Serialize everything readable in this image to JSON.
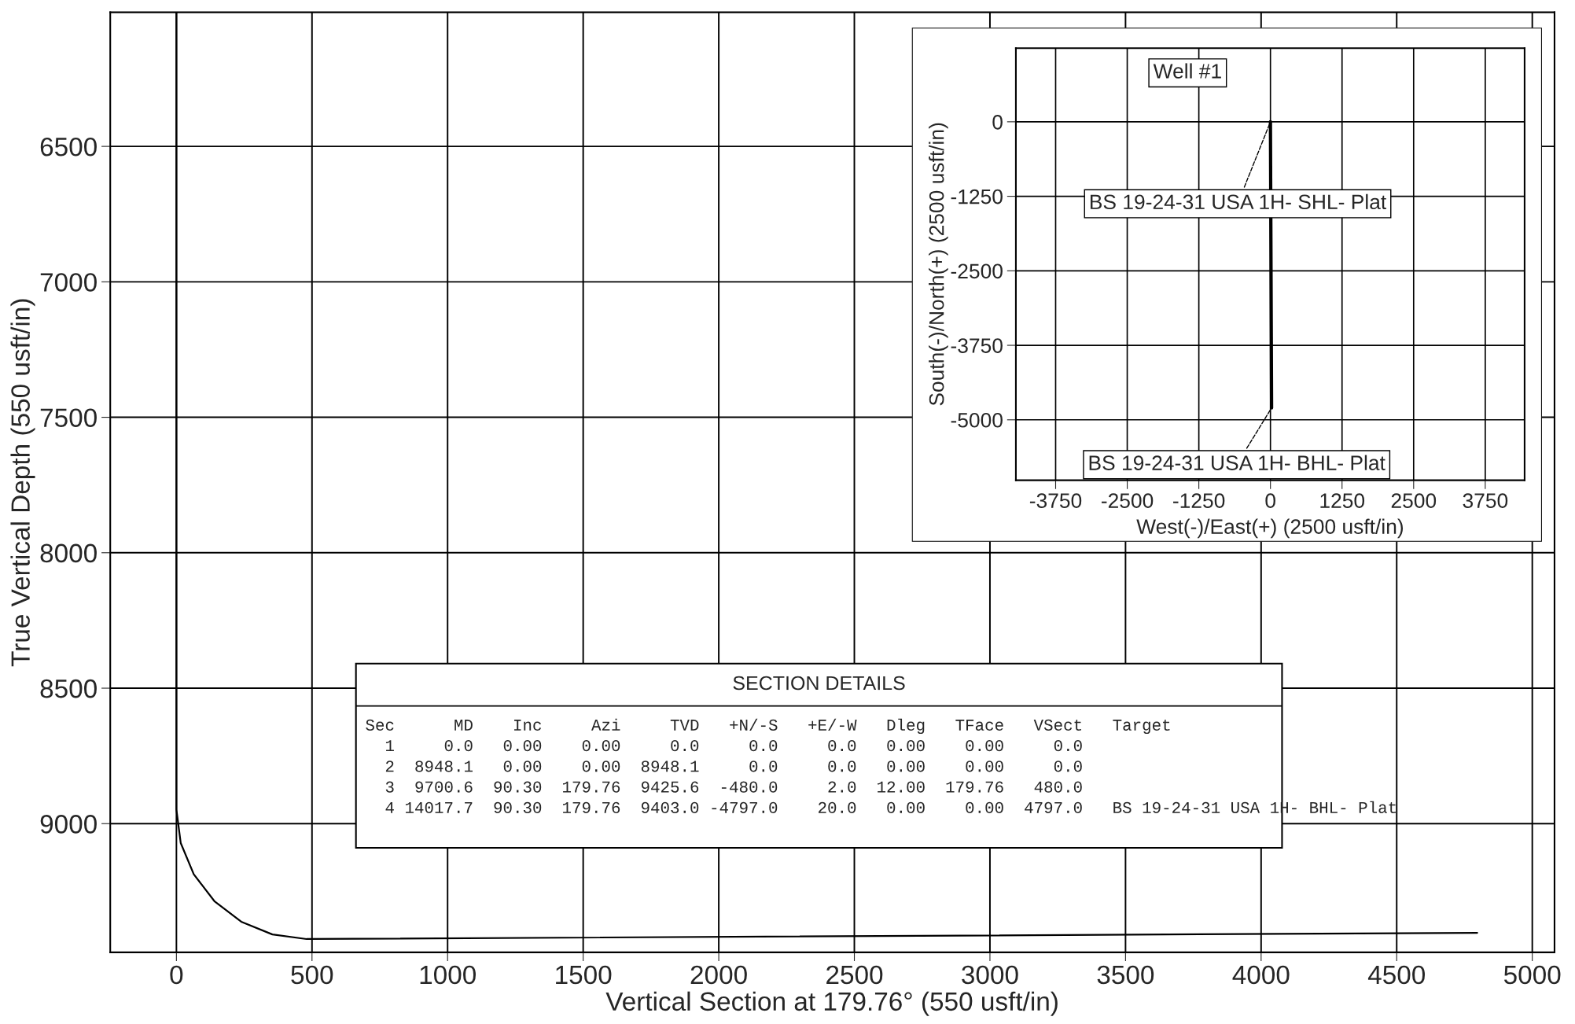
{
  "chart_data": [
    {
      "type": "line",
      "xlabel": "Vertical Section at 179.76° (550 usft/in)",
      "ylabel": "True Vertical Depth (550 usft/in)",
      "xlim": [
        -244,
        5082
      ],
      "ylim": [
        9475,
        6005
      ],
      "xticks": [
        0,
        500,
        1000,
        1500,
        2000,
        2500,
        3000,
        3500,
        4000,
        4500,
        5000
      ],
      "yticks": [
        6500,
        7000,
        7500,
        8000,
        8500,
        9000
      ],
      "grid": true,
      "series": [
        {
          "color": "#000000",
          "x": [
            0,
            0,
            16,
            64,
            140,
            239,
            354,
            480,
            4797
          ],
          "values": [
            6005,
            8948,
            9072,
            9187,
            9286,
            9362,
            9409,
            9426,
            9403
          ]
        }
      ]
    },
    {
      "type": "line",
      "title": "Well #1",
      "xlabel": "West(-)/East(+) (2500 usft/in)",
      "ylabel": "South(-)/North(+) (2500 usft/in)",
      "xlim": [
        -4444,
        4437
      ],
      "ylim": [
        -6014,
        1236
      ],
      "xticks": [
        -3750,
        -2500,
        -1250,
        0,
        1250,
        2500,
        3750
      ],
      "yticks": [
        0,
        -1250,
        -2500,
        -3750,
        -5000
      ],
      "grid": true,
      "series": [
        {
          "color": "#000000",
          "x": [
            0,
            20
          ],
          "values": [
            0,
            -4800
          ]
        }
      ],
      "annotations": [
        {
          "text": "BS 19-24-31 USA 1H- SHL- Plat",
          "x": 0,
          "y": 0
        },
        {
          "text": "BS 19-24-31 USA 1H- BHL- Plat",
          "x": 20,
          "y": -4800
        }
      ]
    },
    {
      "type": "other",
      "title": "SECTION DETAILS",
      "annotations": [
        "Sec      MD    Inc     Azi     TVD   +N/-S   +E/-W   Dleg   TFace   VSect   Target",
        "  1     0.0   0.00    0.00     0.0     0.0     0.0   0.00    0.00     0.0",
        "  2  8948.1   0.00    0.00  8948.1     0.0     0.0   0.00    0.00     0.0",
        "  3  9700.6  90.30  179.76  9425.6  -480.0     2.0  12.00  179.76   480.0",
        "  4 14017.7  90.30  179.76  9403.0 -4797.0    20.0   0.00    0.00  4797.0   BS 19-24-31 USA 1H- BHL- Plat"
      ]
    }
  ]
}
